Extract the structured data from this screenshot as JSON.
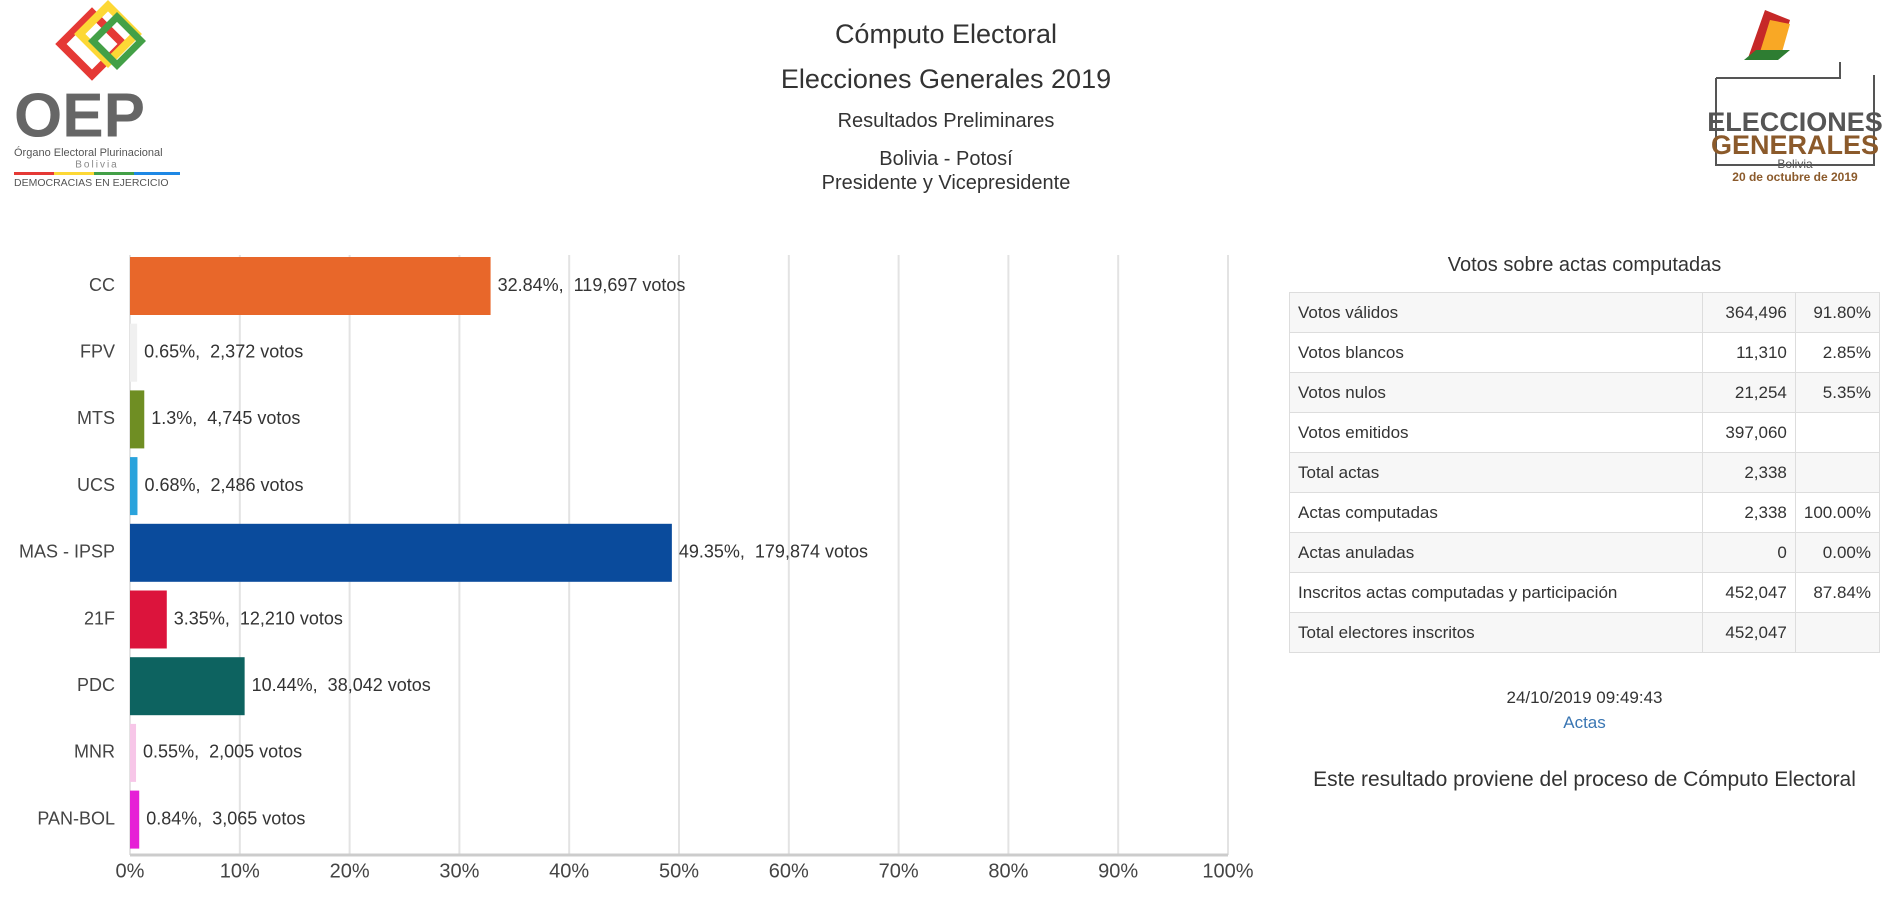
{
  "header": {
    "title": "Cómputo Electoral",
    "subtitle": "Elecciones Generales 2019",
    "results": "Resultados Preliminares",
    "region": "Bolivia - Potosí",
    "office": "Presidente y Vicepresidente"
  },
  "logo_left": {
    "acronym": "OEP",
    "name": "Órgano Electoral Plurinacional",
    "country": "Bolivia",
    "motto": "DEMOCRACIAS EN EJERCICIO"
  },
  "logo_right": {
    "line1": "ELECCIONES",
    "line2": "GENERALES",
    "country": "Bolivia",
    "date": "20 de octubre de 2019"
  },
  "chart_data": {
    "type": "bar",
    "orientation": "horizontal",
    "categories": [
      "CC",
      "FPV",
      "MTS",
      "UCS",
      "MAS - IPSP",
      "21F",
      "PDC",
      "MNR",
      "PAN-BOL"
    ],
    "values": [
      32.84,
      0.65,
      1.3,
      0.68,
      49.35,
      3.35,
      10.44,
      0.55,
      0.84
    ],
    "value_labels": [
      "32.84%,  119,697 votos",
      "0.65%,  2,372 votos",
      "1.3%,  4,745 votos",
      "0.68%,  2,486 votos",
      "49.35%,  179,874 votos",
      "3.35%,  12,210 votos",
      "10.44%,  38,042 votos",
      "0.55%,  2,005 votos",
      "0.84%,  3,065 votos"
    ],
    "colors": [
      "#e8672a",
      "#f0f0f0",
      "#6f8e23",
      "#2aa3dc",
      "#0a4b9c",
      "#dc143c",
      "#0d6360",
      "#f7c6e8",
      "#e620d6"
    ],
    "xlim": [
      0,
      100
    ],
    "xticks": [
      {
        "value": 0,
        "label": "0%"
      },
      {
        "value": 10,
        "label": "10%"
      },
      {
        "value": 20,
        "label": "20%"
      },
      {
        "value": 30,
        "label": "30%"
      },
      {
        "value": 40,
        "label": "40%"
      },
      {
        "value": 50,
        "label": "50%"
      },
      {
        "value": 60,
        "label": "60%"
      },
      {
        "value": 70,
        "label": "70%"
      },
      {
        "value": 80,
        "label": "80%"
      },
      {
        "value": 90,
        "label": "90%"
      },
      {
        "value": 100,
        "label": "100%"
      }
    ],
    "grid": true
  },
  "table": {
    "title": "Votos sobre actas computadas",
    "rows": [
      [
        "Votos válidos",
        "364,496",
        "91.80%"
      ],
      [
        "Votos blancos",
        "11,310",
        "2.85%"
      ],
      [
        "Votos nulos",
        "21,254",
        "5.35%"
      ],
      [
        "Votos emitidos",
        "397,060"
      ],
      [
        "Total actas",
        "2,338"
      ],
      [
        "Actas computadas",
        "2,338",
        "100.00%"
      ],
      [
        "Actas anuladas",
        "0",
        "0.00%"
      ],
      [
        "Inscritos actas computadas y participación",
        "452,047",
        "87.84%"
      ],
      [
        "Total electores inscritos",
        "452,047"
      ]
    ]
  },
  "footer": {
    "timestamp": "24/10/2019 09:49:43",
    "link": "Actas",
    "note": "Este resultado proviene del proceso de Cómputo Electoral"
  }
}
